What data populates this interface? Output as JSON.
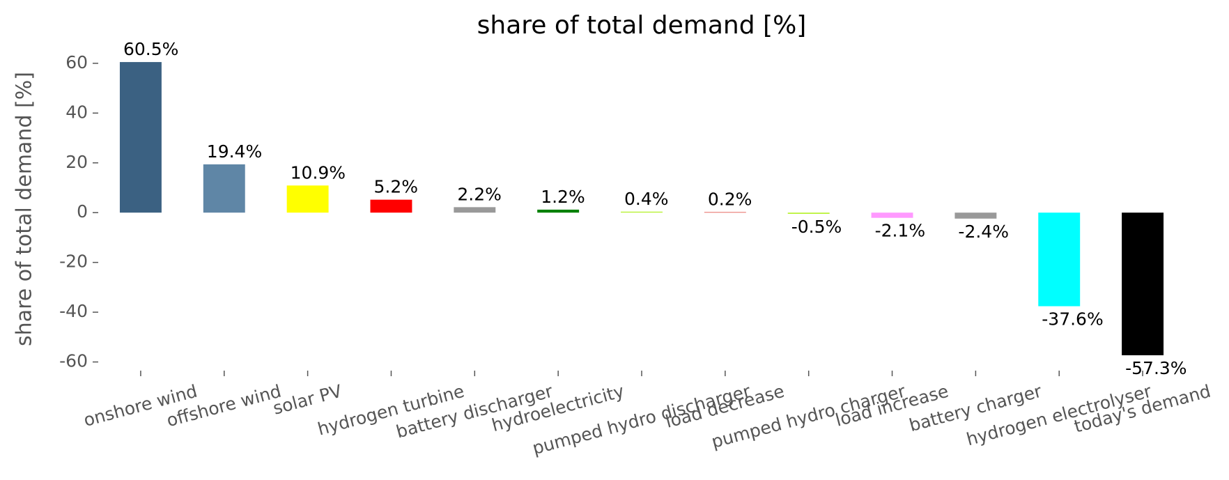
{
  "chart_data": {
    "type": "bar",
    "title": "share of total demand [%]",
    "ylabel": "share of total demand [%]",
    "categories": [
      "onshore wind",
      "offshore wind",
      "solar PV",
      "hydrogen turbine",
      "battery discharger",
      "hydroelectricity",
      "pumped hydro discharger",
      "load decrease",
      "pumped hydro charger",
      "load increase",
      "battery charger",
      "hydrogen electrolyser",
      "today's demand"
    ],
    "values": [
      60.5,
      19.4,
      10.9,
      5.2,
      2.2,
      1.2,
      0.4,
      0.2,
      -0.5,
      -2.1,
      -2.4,
      -37.6,
      -57.3
    ],
    "value_labels": [
      "60.5%",
      "19.4%",
      "10.9%",
      "5.2%",
      "2.2%",
      "1.2%",
      "0.4%",
      "0.2%",
      "-0.5%",
      "-2.1%",
      "-2.4%",
      "-37.6%",
      "-57.3%"
    ],
    "colors": [
      "#3b6182",
      "#5f86a6",
      "#ffff00",
      "#ff0000",
      "#999999",
      "#008000",
      "#baf238",
      "#dd2e23",
      "#baf238",
      "#ff99ff",
      "#999999",
      "#00ffff",
      "#000000"
    ],
    "ylim": [
      -63.2,
      66.4
    ],
    "yticks": [
      -60,
      -40,
      -20,
      0,
      20,
      40,
      60
    ],
    "grid": false
  }
}
